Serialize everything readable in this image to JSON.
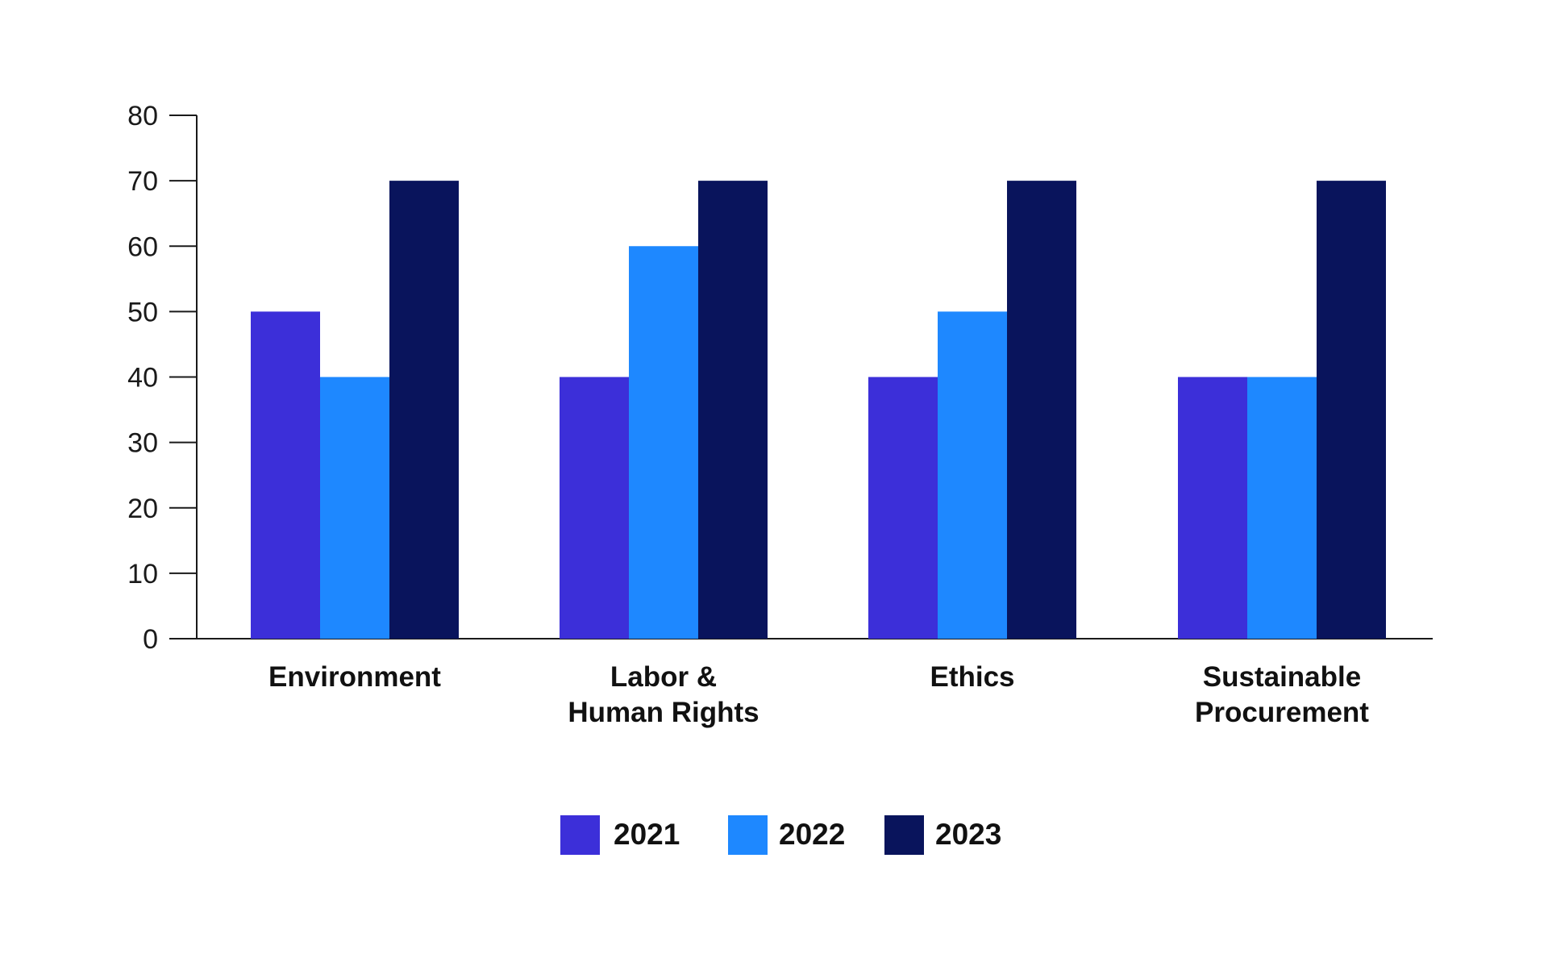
{
  "chart_data": {
    "type": "bar",
    "title": "",
    "xlabel": "",
    "ylabel": "",
    "ylim": [
      0,
      80
    ],
    "yticks": [
      0,
      10,
      20,
      30,
      40,
      50,
      60,
      70,
      80
    ],
    "grid": false,
    "legend_position": "bottom",
    "categories": [
      [
        "Environment"
      ],
      [
        "Labor &",
        "Human Rights"
      ],
      [
        "Ethics"
      ],
      [
        "Sustainable",
        "Procurement"
      ]
    ],
    "series": [
      {
        "name": "2021",
        "color": "#3c2fd9",
        "values": [
          50,
          40,
          40,
          40
        ]
      },
      {
        "name": "2022",
        "color": "#1e88ff",
        "values": [
          40,
          60,
          50,
          40
        ]
      },
      {
        "name": "2023",
        "color": "#09145c",
        "values": [
          70,
          70,
          70,
          70
        ]
      }
    ],
    "axis_color": "#1a1a1a"
  }
}
